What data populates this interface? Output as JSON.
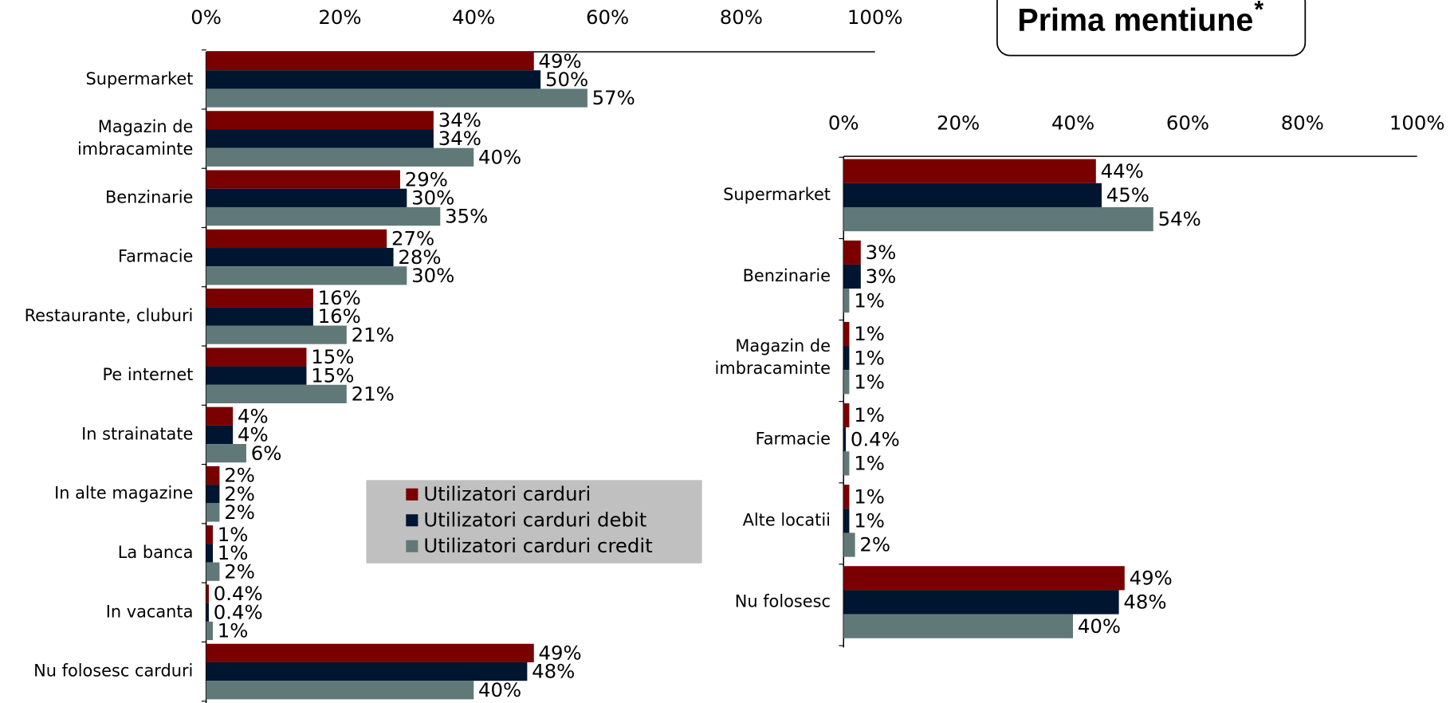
{
  "chart_data": [
    {
      "type": "hbar",
      "categories": [
        "Supermarket",
        "Magazin de\nimbracaminte",
        "Benzinarie",
        "Farmacie",
        "Restaurante, cluburi",
        "Pe internet",
        "In strainatate",
        "In alte magazine",
        "La banca",
        "In vacanta",
        "Nu folosesc carduri"
      ],
      "series": [
        {
          "name": "Utilizatori carduri",
          "color": "#7a0000",
          "values": [
            49,
            34,
            29,
            27,
            16,
            15,
            4,
            2,
            1,
            0.4,
            49
          ],
          "value_labels": [
            "49%",
            "34%",
            "29%",
            "27%",
            "16%",
            "15%",
            "4%",
            "2%",
            "1%",
            "0.4%",
            "49%"
          ]
        },
        {
          "name": "Utilizatori carduri debit",
          "color": "#001530",
          "values": [
            50,
            34,
            30,
            28,
            16,
            15,
            4,
            2,
            1,
            0.4,
            48
          ],
          "value_labels": [
            "50%",
            "34%",
            "30%",
            "28%",
            "16%",
            "15%",
            "4%",
            "2%",
            "1%",
            "0.4%",
            "48%"
          ]
        },
        {
          "name": "Utilizatori carduri credit",
          "color": "#607878",
          "values": [
            57,
            40,
            35,
            30,
            21,
            21,
            6,
            2,
            2,
            1,
            40
          ],
          "value_labels": [
            "57%",
            "40%",
            "35%",
            "30%",
            "21%",
            "21%",
            "6%",
            "2%",
            "2%",
            "1%",
            "40%"
          ]
        }
      ],
      "xlim": [
        0,
        100
      ],
      "xticks": [
        {
          "value": 0,
          "label": "0%"
        },
        {
          "value": 20,
          "label": "20%"
        },
        {
          "value": 40,
          "label": "40%"
        },
        {
          "value": 60,
          "label": "60%"
        },
        {
          "value": 80,
          "label": "80%"
        },
        {
          "value": 100,
          "label": "100%"
        }
      ],
      "legend": "bottom-right"
    },
    {
      "type": "hbar",
      "title": "Prima mentiune",
      "title_mark": "*",
      "categories": [
        "Supermarket",
        "Benzinarie",
        "Magazin de\nimbracaminte",
        "Farmacie",
        "Alte locatii",
        "Nu folosesc"
      ],
      "series": [
        {
          "color": "#7a0000",
          "values": [
            44,
            3,
            1,
            1,
            1,
            49
          ],
          "value_labels": [
            "44%",
            "3%",
            "1%",
            "1%",
            "1%",
            "49%"
          ]
        },
        {
          "color": "#001530",
          "values": [
            45,
            3,
            1,
            0.4,
            1,
            48
          ],
          "value_labels": [
            "45%",
            "3%",
            "1%",
            "0.4%",
            "1%",
            "48%"
          ]
        },
        {
          "color": "#607878",
          "values": [
            54,
            1,
            1,
            1,
            2,
            40
          ],
          "value_labels": [
            "54%",
            "1%",
            "1%",
            "1%",
            "2%",
            "40%"
          ]
        }
      ],
      "xlim": [
        0,
        100
      ],
      "xticks": [
        {
          "value": 0,
          "label": "0%"
        },
        {
          "value": 20,
          "label": "20%"
        },
        {
          "value": 40,
          "label": "40%"
        },
        {
          "value": 60,
          "label": "60%"
        },
        {
          "value": 80,
          "label": "80%"
        },
        {
          "value": 100,
          "label": "100%"
        }
      ]
    }
  ]
}
